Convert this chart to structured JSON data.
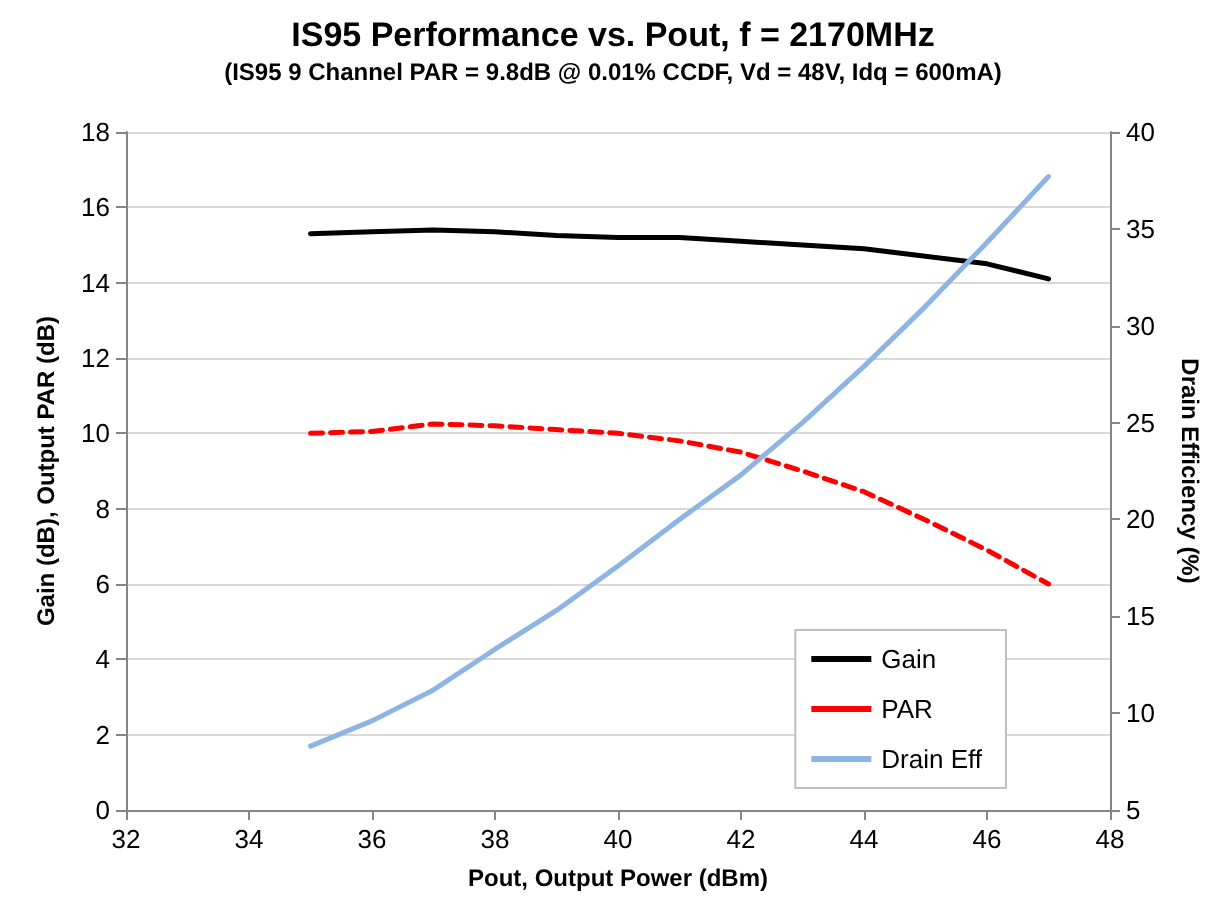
{
  "chart_data": {
    "type": "line",
    "title": "IS95 Performance vs. Pout, f = 2170MHz",
    "subtitle": "(IS95 9 Channel PAR = 9.8dB @ 0.01% CCDF, Vd = 48V, Idq = 600mA)",
    "xlabel": "Pout, Output Power (dBm)",
    "ylabel": "Gain (dB), Output PAR (dB)",
    "y2label": "Drain Efficiency (%)",
    "x": [
      35,
      36,
      37,
      38,
      39,
      40,
      41,
      42,
      43,
      44,
      45,
      46,
      47
    ],
    "series": [
      {
        "name": "Gain",
        "color": "#000000",
        "line_style": "solid",
        "values": [
          15.3,
          15.35,
          15.4,
          15.35,
          15.25,
          15.2,
          15.2,
          15.1,
          15.0,
          14.9,
          14.7,
          14.5,
          14.1
        ]
      },
      {
        "name": "PAR",
        "color": "#ff0000",
        "line_style": "dashed",
        "values": [
          10.0,
          10.05,
          10.25,
          10.2,
          10.1,
          10.0,
          9.8,
          9.5,
          9.0,
          8.45,
          7.7,
          6.9,
          6.0
        ]
      },
      {
        "name": "Drain Eff",
        "color": "#8eb4e3",
        "line_style": "solid",
        "axis": "y2",
        "values": [
          8.3,
          9.6,
          11.2,
          13.3,
          15.3,
          17.6,
          20.0,
          22.3,
          25.0,
          27.9,
          31.0,
          34.3,
          37.7
        ]
      }
    ],
    "xlim": [
      32,
      48
    ],
    "xticks": [
      32,
      34,
      36,
      38,
      40,
      42,
      44,
      46,
      48
    ],
    "ylim": [
      0,
      18
    ],
    "yticks": [
      0,
      2,
      4,
      6,
      8,
      10,
      12,
      14,
      16,
      18
    ],
    "y2lim": [
      5,
      40
    ],
    "y2ticks": [
      5,
      10,
      15,
      20,
      25,
      30,
      35,
      40
    ],
    "grid": "y",
    "legend": "bottom right",
    "marker": "none"
  }
}
